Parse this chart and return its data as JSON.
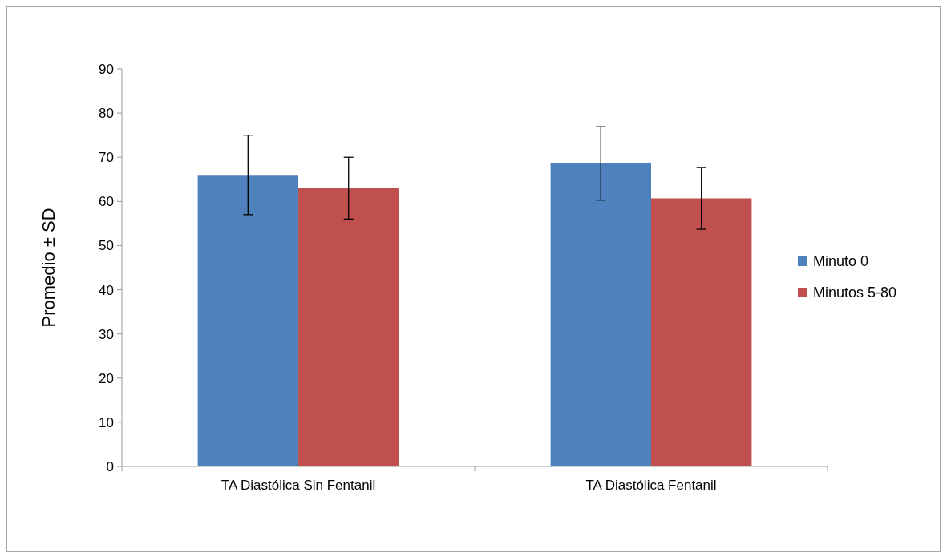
{
  "chart_data": {
    "type": "bar",
    "ylabel": "Promedio ± SD",
    "categories": [
      "TA Diastólica Sin Fentanil",
      "TA Diastólica Fentanil"
    ],
    "series": [
      {
        "name": "Minuto 0",
        "color": "#4f81bd",
        "values": [
          66,
          68.6
        ],
        "errors": [
          9,
          8.3
        ]
      },
      {
        "name": "Minutos 5-80",
        "color": "#c0504d",
        "values": [
          63,
          60.7
        ],
        "errors": [
          7,
          7
        ]
      }
    ],
    "ylim": [
      0,
      90
    ],
    "yticks": [
      0,
      10,
      20,
      30,
      40,
      50,
      60,
      70,
      80,
      90
    ],
    "grid": false,
    "legend": "right"
  }
}
